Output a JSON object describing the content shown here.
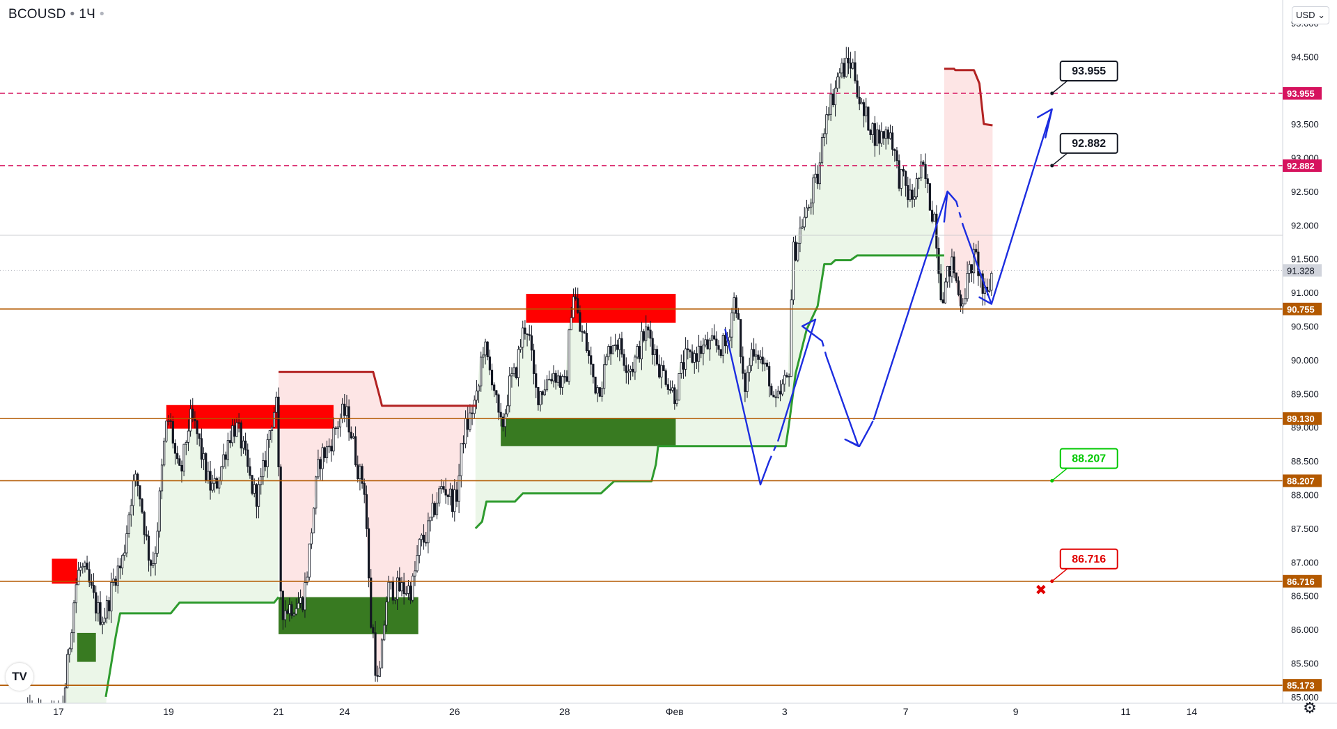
{
  "header": {
    "symbol": "BCOUSD",
    "interval": "1Ч",
    "dot": "•"
  },
  "currency": {
    "label": "USD",
    "chevron": "chevron-down-icon"
  },
  "logo": {
    "text": "TV",
    "icon": "tradingview-logo-icon"
  },
  "settings": {
    "icon": "gear-icon",
    "glyph": "⚙"
  },
  "colors": {
    "up": "#131722",
    "down": "#131722",
    "supply_zone": "#ff0000",
    "demand_zone": "#387a21",
    "trail_red": "#b22222",
    "trail_green": "#2e9b2e",
    "level_line": "#b35900",
    "dashed_level": "#d6135e",
    "projection": "#1c2de0",
    "label_green": "#00c800",
    "label_red": "#e00000"
  },
  "chart_data": {
    "type": "candlestick",
    "title": "BCOUSD · 1Ч",
    "ylim": [
      85.0,
      95.0
    ],
    "grid": false,
    "current_price": 91.328,
    "y_ticks": [
      "85.000",
      "85.500",
      "86.000",
      "86.500",
      "87.000",
      "87.500",
      "88.000",
      "88.500",
      "89.000",
      "89.500",
      "90.000",
      "90.500",
      "91.000",
      "91.500",
      "92.000",
      "92.500",
      "93.000",
      "93.500",
      "94.000",
      "94.500",
      "95.000"
    ],
    "x_ticks": [
      {
        "label": "17",
        "t": 0
      },
      {
        "label": "19",
        "t": 10
      },
      {
        "label": "21",
        "t": 20
      },
      {
        "label": "24",
        "t": 26
      },
      {
        "label": "26",
        "t": 36
      },
      {
        "label": "28",
        "t": 46
      },
      {
        "label": "Фев",
        "t": 56
      },
      {
        "label": "3",
        "t": 66
      },
      {
        "label": "7",
        "t": 77
      },
      {
        "label": "9",
        "t": 87
      },
      {
        "label": "11",
        "t": 97
      },
      {
        "label": "14",
        "t": 103
      }
    ],
    "horizontal_levels": [
      {
        "value": 85.173,
        "label": "85.173",
        "style": "solid"
      },
      {
        "value": 86.716,
        "label": "86.716",
        "style": "solid"
      },
      {
        "value": 88.207,
        "label": "88.207",
        "style": "solid"
      },
      {
        "value": 89.13,
        "label": "89.130",
        "style": "solid"
      },
      {
        "value": 90.755,
        "label": "90.755",
        "style": "solid"
      },
      {
        "value": 92.882,
        "label": "92.882",
        "style": "dashed"
      },
      {
        "value": 93.955,
        "label": "93.955",
        "style": "dashed"
      }
    ],
    "supply_zones": [
      {
        "t0": -0.6,
        "t1": 1.7,
        "y0": 86.68,
        "y1": 87.05
      },
      {
        "t0": 9.8,
        "t1": 25.0,
        "y0": 88.98,
        "y1": 89.33
      },
      {
        "t0": 42.5,
        "t1": 56.1,
        "y0": 90.55,
        "y1": 90.98
      }
    ],
    "demand_zones": [
      {
        "t0": 1.7,
        "t1": 3.4,
        "y0": 85.52,
        "y1": 85.95
      },
      {
        "t0": 20.0,
        "t1": 32.7,
        "y0": 85.93,
        "y1": 86.48
      },
      {
        "t0": 40.2,
        "t1": 56.1,
        "y0": 88.72,
        "y1": 89.14
      }
    ],
    "red_trail": [
      {
        "points": [
          [
            20,
            89.82
          ],
          [
            28.6,
            89.82
          ],
          [
            29.2,
            89.45
          ],
          [
            29.4,
            89.32
          ],
          [
            38,
            89.32
          ]
        ],
        "fill_to": "price",
        "fill": "#fde2e2",
        "fill_from": 20,
        "fill_until": 38
      },
      {
        "points": [
          [
            80.5,
            94.32
          ],
          [
            81.4,
            94.32
          ],
          [
            81.5,
            94.3
          ],
          [
            83.2,
            94.3
          ],
          [
            83.7,
            94.1
          ],
          [
            84.1,
            93.5
          ],
          [
            84.9,
            93.48
          ]
        ],
        "fill": "#fde2e2",
        "fill_from": 80.5,
        "fill_until": 84.9
      }
    ],
    "green_trail": [
      {
        "points": [
          [
            4.3,
            85.0
          ],
          [
            4.7,
            85.4
          ],
          [
            5.2,
            85.9
          ],
          [
            5.6,
            86.24
          ],
          [
            10.2,
            86.24
          ],
          [
            11.0,
            86.4
          ],
          [
            19.6,
            86.4
          ],
          [
            20,
            86.48
          ]
        ],
        "fill_from": -3,
        "fill_until": 20
      },
      {
        "points": [
          [
            37.9,
            87.5
          ],
          [
            38.5,
            87.6
          ],
          [
            38.9,
            87.9
          ],
          [
            41.5,
            87.9
          ],
          [
            42.2,
            88.02
          ],
          [
            49.3,
            88.02
          ],
          [
            50.5,
            88.2
          ],
          [
            53.9,
            88.2
          ],
          [
            54.3,
            88.45
          ],
          [
            54.5,
            88.72
          ],
          [
            66.1,
            88.72
          ],
          [
            66.4,
            89.05
          ],
          [
            67.0,
            89.8
          ],
          [
            68.0,
            90.45
          ],
          [
            69.0,
            90.8
          ],
          [
            69.6,
            91.42
          ],
          [
            70.2,
            91.42
          ],
          [
            70.6,
            91.48
          ],
          [
            72.0,
            91.48
          ],
          [
            72.6,
            91.55
          ],
          [
            80.5,
            91.55
          ]
        ],
        "fill_from": 37.9,
        "fill_until": 80.5
      }
    ],
    "projections": [
      {
        "points": [
          [
            60.6,
            90.45
          ],
          [
            63.8,
            88.15
          ],
          [
            64.6,
            88.5
          ]
        ],
        "dash_after": 1
      },
      {
        "points": [
          [
            65.4,
            88.8
          ],
          [
            68.8,
            90.6
          ],
          [
            67.6,
            90.5
          ],
          [
            69.4,
            90.28
          ]
        ],
        "dash_after": 2
      },
      {
        "points": [
          [
            69.8,
            90.05
          ],
          [
            72.7,
            88.72
          ],
          [
            71.5,
            88.82
          ],
          [
            72.8,
            88.72
          ],
          [
            73.8,
            89.02
          ]
        ],
        "dash_after": 0
      },
      {
        "points": [
          [
            74.1,
            89.12
          ],
          [
            80.8,
            92.5
          ],
          [
            80.5,
            92.05
          ],
          [
            80.8,
            92.5
          ],
          [
            81.6,
            92.35
          ]
        ],
        "dash_after": 0
      },
      {
        "points": [
          [
            82.2,
            92.0
          ],
          [
            84.8,
            90.83
          ],
          [
            83.7,
            90.93
          ],
          [
            84.8,
            90.83
          ],
          [
            85.5,
            91.2
          ]
        ],
        "dash_after": 0
      },
      {
        "points": [
          [
            85.6,
            91.25
          ],
          [
            90.3,
            93.72
          ],
          [
            89.0,
            93.6
          ],
          [
            90.3,
            93.72
          ],
          [
            89.7,
            93.3
          ]
        ],
        "dash_after": 0
      }
    ],
    "callouts": [
      {
        "text": "93.955",
        "value": 93.955,
        "t": 90.3,
        "color": "#131722",
        "border": "#131722"
      },
      {
        "text": "92.882",
        "value": 92.882,
        "t": 90.3,
        "color": "#131722",
        "border": "#131722"
      },
      {
        "text": "88.207",
        "value": 88.207,
        "t": 90.3,
        "color": "#00c800",
        "border": "#00c800"
      },
      {
        "text": "86.716",
        "value": 86.716,
        "t": 90.3,
        "color": "#e00000",
        "border": "#e00000"
      }
    ],
    "stop_marker": {
      "t": 89.3,
      "value": 86.6,
      "glyph": "✖"
    },
    "anchors": [
      [
        0,
        84.7
      ],
      [
        2,
        86.9
      ],
      [
        4,
        86.2
      ],
      [
        5.5,
        86.9
      ],
      [
        7,
        88.2
      ],
      [
        8.5,
        87.0
      ],
      [
        10,
        89.1
      ],
      [
        11,
        88.3
      ],
      [
        12,
        89.1
      ],
      [
        14,
        88.1
      ],
      [
        16,
        89.0
      ],
      [
        18,
        88.0
      ],
      [
        19.8,
        89.3
      ],
      [
        20.3,
        86.3
      ],
      [
        22,
        86.4
      ],
      [
        24,
        88.6
      ],
      [
        26,
        89.2
      ],
      [
        27.7,
        88.2
      ],
      [
        28.5,
        86.0
      ],
      [
        29,
        85.2
      ],
      [
        30,
        86.6
      ],
      [
        32,
        86.6
      ],
      [
        33,
        87.3
      ],
      [
        35,
        88.1
      ],
      [
        36,
        87.9
      ],
      [
        37,
        89.0
      ],
      [
        38,
        89.4
      ],
      [
        38.6,
        90.2
      ],
      [
        39.3,
        89.8
      ],
      [
        40.2,
        89.0
      ],
      [
        41.2,
        89.7
      ],
      [
        42.5,
        90.5
      ],
      [
        43.5,
        89.5
      ],
      [
        45,
        89.8
      ],
      [
        46,
        89.6
      ],
      [
        46.8,
        91.0
      ],
      [
        47.5,
        90.4
      ],
      [
        49,
        89.6
      ],
      [
        50.5,
        90.3
      ],
      [
        52,
        89.9
      ],
      [
        53.5,
        90.4
      ],
      [
        55,
        89.8
      ],
      [
        56,
        89.5
      ],
      [
        57,
        90.0
      ],
      [
        59,
        90.2
      ],
      [
        60.6,
        90.2
      ],
      [
        61.5,
        90.9
      ],
      [
        62.3,
        89.6
      ],
      [
        63.2,
        90.2
      ],
      [
        64.5,
        89.8
      ],
      [
        65,
        89.3
      ],
      [
        66.3,
        89.7
      ],
      [
        66.8,
        91.6
      ],
      [
        67.8,
        92.1
      ],
      [
        68.8,
        92.6
      ],
      [
        70,
        93.8
      ],
      [
        71.2,
        94.3
      ],
      [
        72,
        94.4
      ],
      [
        73.3,
        93.6
      ],
      [
        74.5,
        93.3
      ],
      [
        75.5,
        93.4
      ],
      [
        76.5,
        92.7
      ],
      [
        77.5,
        92.4
      ],
      [
        78.5,
        92.8
      ],
      [
        79.5,
        92.2
      ],
      [
        80.3,
        91.0
      ],
      [
        81.2,
        91.4
      ],
      [
        82,
        90.9
      ],
      [
        83.3,
        91.5
      ],
      [
        84.3,
        90.9
      ],
      [
        84.9,
        91.3
      ]
    ],
    "candle_range": {
      "t0": -3,
      "t1": 84.9,
      "step": 0.2
    }
  }
}
